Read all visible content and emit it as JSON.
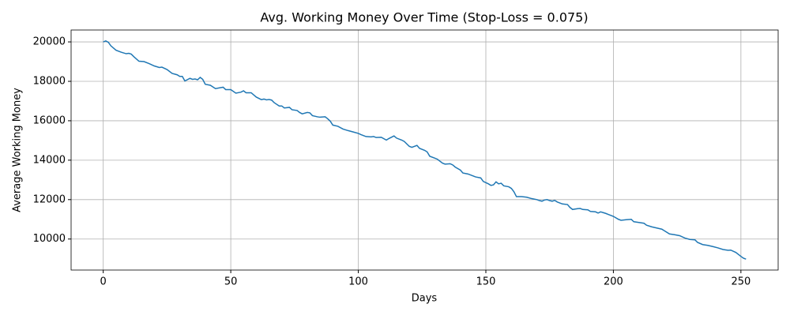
{
  "chart_data": {
    "type": "line",
    "title": "Avg. Working Money Over Time (Stop-Loss = 0.075)",
    "x_label": "Days",
    "y_label": "Average Working Money",
    "x": [
      0,
      1,
      2,
      3,
      5,
      7,
      9,
      10,
      11,
      12,
      14,
      16,
      18,
      20,
      22,
      23,
      25,
      27,
      29,
      30,
      31,
      32,
      34,
      35,
      36,
      37,
      38,
      39,
      40,
      42,
      44,
      46,
      47,
      48,
      50,
      52,
      54,
      55,
      56,
      58,
      60,
      62,
      63,
      64,
      65,
      66,
      67,
      69,
      70,
      71,
      73,
      74,
      76,
      77,
      78,
      80,
      81,
      82,
      84,
      85,
      87,
      88,
      89,
      90,
      92,
      94,
      96,
      98,
      100,
      101,
      103,
      105,
      106,
      107,
      109,
      111,
      112,
      114,
      115,
      117,
      118,
      120,
      121,
      123,
      124,
      126,
      127,
      128,
      130,
      131,
      133,
      134,
      136,
      137,
      138,
      140,
      141,
      143,
      145,
      146,
      148,
      149,
      151,
      152,
      153,
      154,
      155,
      156,
      157,
      159,
      160,
      161,
      162,
      164,
      166,
      168,
      170,
      171,
      172,
      173,
      174,
      175,
      176,
      177,
      178,
      180,
      182,
      183,
      184,
      186,
      187,
      188,
      190,
      191,
      193,
      194,
      195,
      197,
      198,
      200,
      202,
      203,
      205,
      207,
      208,
      210,
      212,
      213,
      215,
      217,
      219,
      220,
      222,
      224,
      226,
      228,
      230,
      232,
      233,
      235,
      237,
      239,
      241,
      243,
      245,
      246,
      248,
      250,
      251,
      252
    ],
    "series": [
      {
        "name": "Average Working Money",
        "color": "#1f77b4",
        "values": [
          20000,
          20050,
          19980,
          19800,
          19580,
          19480,
          19400,
          19420,
          19380,
          19250,
          19020,
          19000,
          18900,
          18780,
          18700,
          18720,
          18600,
          18400,
          18330,
          18250,
          18250,
          18020,
          18150,
          18100,
          18120,
          18080,
          18200,
          18100,
          17850,
          17800,
          17630,
          17680,
          17700,
          17580,
          17580,
          17400,
          17450,
          17520,
          17420,
          17420,
          17200,
          17070,
          17100,
          17060,
          17080,
          17050,
          16920,
          16750,
          16750,
          16650,
          16680,
          16560,
          16520,
          16420,
          16350,
          16420,
          16400,
          16260,
          16200,
          16180,
          16200,
          16100,
          15980,
          15780,
          15720,
          15580,
          15500,
          15430,
          15360,
          15300,
          15200,
          15180,
          15200,
          15150,
          15160,
          15020,
          15100,
          15230,
          15120,
          15020,
          14950,
          14700,
          14650,
          14750,
          14600,
          14500,
          14420,
          14200,
          14100,
          14050,
          13850,
          13800,
          13820,
          13760,
          13650,
          13500,
          13350,
          13300,
          13200,
          13150,
          13100,
          12920,
          12800,
          12720,
          12750,
          12900,
          12800,
          12830,
          12700,
          12650,
          12570,
          12400,
          12150,
          12150,
          12120,
          12050,
          12000,
          11950,
          11920,
          11980,
          12000,
          11950,
          11920,
          11960,
          11880,
          11780,
          11750,
          11600,
          11500,
          11540,
          11550,
          11500,
          11480,
          11400,
          11380,
          11320,
          11380,
          11300,
          11250,
          11150,
          11000,
          10950,
          10980,
          11000,
          10880,
          10840,
          10800,
          10700,
          10620,
          10560,
          10500,
          10420,
          10260,
          10220,
          10170,
          10050,
          9980,
          9960,
          9830,
          9720,
          9680,
          9620,
          9550,
          9470,
          9430,
          9440,
          9320,
          9120,
          9030,
          8980
        ]
      }
    ],
    "xlim": [
      -12.6,
      264.6
    ],
    "xticks": [
      0,
      50,
      100,
      150,
      200,
      250
    ],
    "ylim": [
      8427,
      20603
    ],
    "yticks": [
      10000,
      12000,
      14000,
      16000,
      18000,
      20000
    ],
    "grid": true
  }
}
